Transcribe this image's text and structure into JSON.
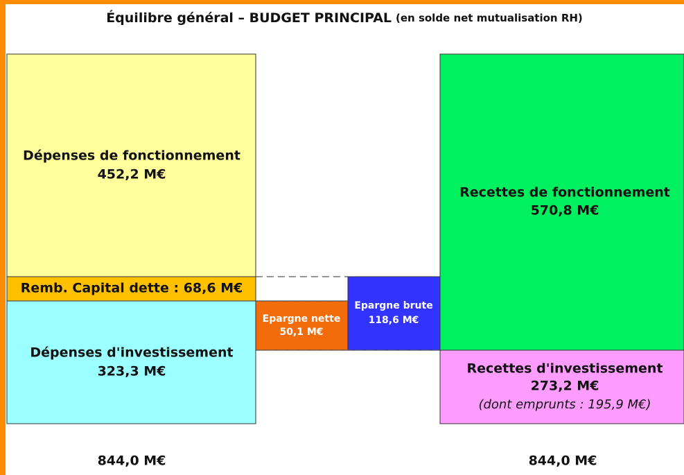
{
  "title": "Équilibre général – BUDGET PRINCIPAL",
  "subtitle": "(en solde net mutualisation RH)",
  "boxes": {
    "depenses_fonctionnement": {
      "label": "Dépenses de fonctionnement",
      "value": "452,2 M€"
    },
    "remb_capital": {
      "label": "Remb. Capital dette : 68,6 M€"
    },
    "depenses_investissement": {
      "label": "Dépenses d'investissement",
      "value": "323,3 M€"
    },
    "epargne_nette": {
      "label": "Epargne nette",
      "value": "50,1 M€"
    },
    "epargne_brute": {
      "label": "Epargne brute",
      "value": "118,6 M€"
    },
    "recettes_fonctionnement": {
      "label": "Recettes de fonctionnement",
      "value": "570,8 M€"
    },
    "recettes_investissement": {
      "label": "Recettes d'investissement",
      "value": "273,2 M€",
      "note": "(dont emprunts : 195,9 M€)"
    }
  },
  "totals": {
    "left": "844,0 M€",
    "right": "844,0 M€"
  }
}
